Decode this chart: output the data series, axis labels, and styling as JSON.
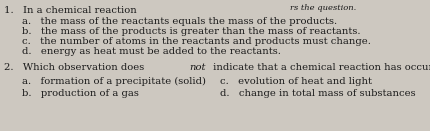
{
  "background_color": "#cdc8c0",
  "top_right_text": "rs the question.",
  "q1_header": "1.   In a chemical reaction",
  "q1_options": [
    "a.   the mass of the reactants equals the mass of the products.",
    "b.   the mass of the products is greater than the mass of reactants.",
    "c.   the number of atoms in the reactants and products must change.",
    "d.   energy as heat must be added to the reactants."
  ],
  "q2_prefix": "2.   Which observation does ",
  "q2_italic": "not",
  "q2_suffix": " indicate that a chemical reaction has occurred?",
  "q2_left": [
    "a.   formation of a precipitate (solid)",
    "b.   production of a gas"
  ],
  "q2_right": [
    "c.   evolution of heat and light",
    "d.   change in total mass of substances"
  ],
  "text_color": "#1a1a1a",
  "fontsize": 7.2,
  "fig_w": 4.31,
  "fig_h": 1.31,
  "dpi": 100
}
